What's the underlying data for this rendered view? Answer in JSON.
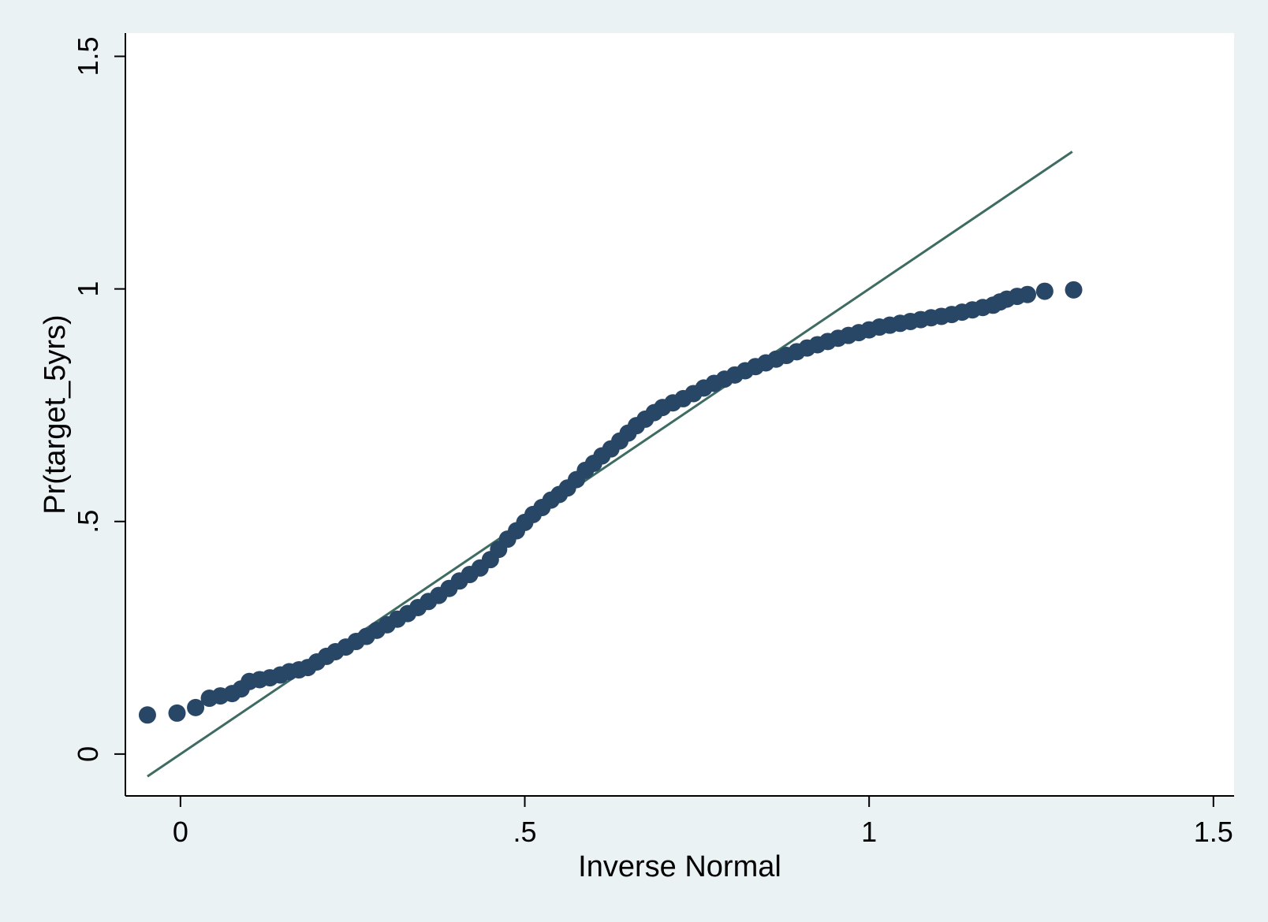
{
  "chart_data": {
    "type": "scatter",
    "title": "",
    "xlabel": "Inverse Normal",
    "ylabel": "Pr(target_5yrs)",
    "xlim": [
      -0.08,
      1.53
    ],
    "ylim": [
      -0.09,
      1.55
    ],
    "xticks": [
      {
        "value": 0,
        "label": "0"
      },
      {
        "value": 0.5,
        "label": ".5"
      },
      {
        "value": 1,
        "label": "1"
      },
      {
        "value": 1.5,
        "label": "1.5"
      }
    ],
    "yticks": [
      {
        "value": 0,
        "label": "0"
      },
      {
        "value": 0.5,
        "label": ".5"
      },
      {
        "value": 1,
        "label": "1"
      },
      {
        "value": 1.5,
        "label": "1.5"
      }
    ],
    "grid": false,
    "legend": "none",
    "colors": {
      "background": "#eaf2f3",
      "plot_area": "#ffffff",
      "markers": "#284666",
      "reference_line": "#3e6b62"
    },
    "reference_line": {
      "x": [
        -0.048,
        1.295
      ],
      "y": [
        -0.048,
        1.295
      ]
    },
    "series": [
      {
        "values": [
          [
            -0.048,
            0.084
          ],
          [
            -0.005,
            0.088
          ],
          [
            0.022,
            0.1
          ],
          [
            0.042,
            0.12
          ],
          [
            0.058,
            0.125
          ],
          [
            0.075,
            0.13
          ],
          [
            0.088,
            0.14
          ],
          [
            0.1,
            0.156
          ],
          [
            0.115,
            0.16
          ],
          [
            0.13,
            0.164
          ],
          [
            0.145,
            0.17
          ],
          [
            0.158,
            0.177
          ],
          [
            0.172,
            0.181
          ],
          [
            0.185,
            0.186
          ],
          [
            0.198,
            0.198
          ],
          [
            0.212,
            0.21
          ],
          [
            0.225,
            0.22
          ],
          [
            0.24,
            0.23
          ],
          [
            0.255,
            0.242
          ],
          [
            0.27,
            0.253
          ],
          [
            0.285,
            0.266
          ],
          [
            0.3,
            0.278
          ],
          [
            0.315,
            0.29
          ],
          [
            0.33,
            0.302
          ],
          [
            0.345,
            0.315
          ],
          [
            0.36,
            0.328
          ],
          [
            0.375,
            0.341
          ],
          [
            0.39,
            0.356
          ],
          [
            0.405,
            0.372
          ],
          [
            0.42,
            0.386
          ],
          [
            0.435,
            0.4
          ],
          [
            0.45,
            0.418
          ],
          [
            0.462,
            0.44
          ],
          [
            0.475,
            0.462
          ],
          [
            0.488,
            0.48
          ],
          [
            0.5,
            0.498
          ],
          [
            0.512,
            0.515
          ],
          [
            0.525,
            0.53
          ],
          [
            0.538,
            0.546
          ],
          [
            0.55,
            0.558
          ],
          [
            0.562,
            0.572
          ],
          [
            0.575,
            0.59
          ],
          [
            0.588,
            0.61
          ],
          [
            0.6,
            0.625
          ],
          [
            0.612,
            0.641
          ],
          [
            0.625,
            0.656
          ],
          [
            0.638,
            0.673
          ],
          [
            0.65,
            0.69
          ],
          [
            0.662,
            0.706
          ],
          [
            0.675,
            0.72
          ],
          [
            0.688,
            0.734
          ],
          [
            0.7,
            0.745
          ],
          [
            0.715,
            0.755
          ],
          [
            0.73,
            0.764
          ],
          [
            0.745,
            0.775
          ],
          [
            0.76,
            0.787
          ],
          [
            0.775,
            0.797
          ],
          [
            0.79,
            0.806
          ],
          [
            0.805,
            0.815
          ],
          [
            0.82,
            0.824
          ],
          [
            0.835,
            0.833
          ],
          [
            0.85,
            0.841
          ],
          [
            0.865,
            0.849
          ],
          [
            0.88,
            0.857
          ],
          [
            0.895,
            0.865
          ],
          [
            0.91,
            0.873
          ],
          [
            0.925,
            0.88
          ],
          [
            0.94,
            0.887
          ],
          [
            0.955,
            0.894
          ],
          [
            0.97,
            0.9
          ],
          [
            0.985,
            0.906
          ],
          [
            1.0,
            0.912
          ],
          [
            1.015,
            0.918
          ],
          [
            1.03,
            0.922
          ],
          [
            1.045,
            0.926
          ],
          [
            1.06,
            0.93
          ],
          [
            1.075,
            0.934
          ],
          [
            1.09,
            0.938
          ],
          [
            1.105,
            0.941
          ],
          [
            1.12,
            0.945
          ],
          [
            1.135,
            0.95
          ],
          [
            1.15,
            0.955
          ],
          [
            1.165,
            0.96
          ],
          [
            1.18,
            0.965
          ],
          [
            1.19,
            0.972
          ],
          [
            1.2,
            0.978
          ],
          [
            1.215,
            0.984
          ],
          [
            1.23,
            0.988
          ],
          [
            1.255,
            0.995
          ],
          [
            1.297,
            0.998
          ]
        ]
      }
    ]
  }
}
